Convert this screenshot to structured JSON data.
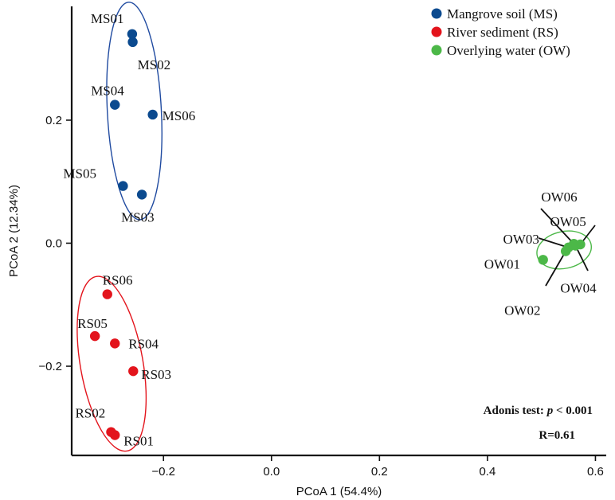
{
  "chart_data": {
    "type": "scatter",
    "xlabel": "PCoA 1 (54.4%)",
    "ylabel": "PCoA 2 (12.34%)",
    "xlim": [
      -0.37,
      0.62
    ],
    "ylim": [
      -0.345,
      0.385
    ],
    "x_ticks": [
      {
        "value": -0.2,
        "label": "−0.2"
      },
      {
        "value": 0.0,
        "label": "0.0"
      },
      {
        "value": 0.2,
        "label": "0.2"
      },
      {
        "value": 0.4,
        "label": "0.4"
      },
      {
        "value": 0.6,
        "label": "0.6"
      }
    ],
    "y_ticks": [
      {
        "value": -0.2,
        "label": "−0.2"
      },
      {
        "value": 0.0,
        "label": "0.0"
      },
      {
        "value": 0.2,
        "label": "0.2"
      }
    ],
    "grid": false,
    "legend_position": "top-right",
    "series": [
      {
        "name": "Mangrove soil (MS)",
        "color": "#0b4a8f",
        "points": [
          {
            "label": "MS01",
            "x": -0.258,
            "y": 0.34
          },
          {
            "label": "MS02",
            "x": -0.257,
            "y": 0.327
          },
          {
            "label": "MS03",
            "x": -0.24,
            "y": 0.079
          },
          {
            "label": "MS04",
            "x": -0.29,
            "y": 0.225
          },
          {
            "label": "MS05",
            "x": -0.275,
            "y": 0.093
          },
          {
            "label": "MS06",
            "x": -0.22,
            "y": 0.209
          }
        ]
      },
      {
        "name": "River sediment (RS)",
        "color": "#e3141c",
        "points": [
          {
            "label": "RS01",
            "x": -0.29,
            "y": -0.312
          },
          {
            "label": "RS02",
            "x": -0.297,
            "y": -0.307
          },
          {
            "label": "RS03",
            "x": -0.256,
            "y": -0.208
          },
          {
            "label": "RS04",
            "x": -0.29,
            "y": -0.163
          },
          {
            "label": "RS05",
            "x": -0.327,
            "y": -0.151
          },
          {
            "label": "RS06",
            "x": -0.304,
            "y": -0.083
          }
        ]
      },
      {
        "name": "Overlying water (OW)",
        "color": "#4cb848",
        "points": [
          {
            "label": "OW01",
            "x": 0.503,
            "y": -0.027
          },
          {
            "label": "OW02",
            "x": 0.545,
            "y": -0.013
          },
          {
            "label": "OW03",
            "x": 0.55,
            "y": -0.007
          },
          {
            "label": "OW04",
            "x": 0.563,
            "y": -0.004
          },
          {
            "label": "OW05",
            "x": 0.572,
            "y": -0.002
          },
          {
            "label": "OW06",
            "x": 0.56,
            "y": -0.001
          }
        ]
      }
    ],
    "ellipses": [
      {
        "series": "Mangrove soil (MS)",
        "color": "#1f4aa0",
        "cx": -0.254,
        "cy": 0.215,
        "rx": 0.05,
        "ry": 0.177,
        "angle": -3
      },
      {
        "series": "River sediment (RS)",
        "color": "#e3141c",
        "cx": -0.296,
        "cy": -0.196,
        "rx": 0.058,
        "ry": 0.144,
        "angle": -10
      },
      {
        "series": "Overlying water (OW)",
        "color": "#4cb848",
        "cx": 0.542,
        "cy": -0.011,
        "rx": 0.051,
        "ry": 0.03,
        "angle": -12
      }
    ],
    "annotations": [
      {
        "text_prefix": "Adonis test: ",
        "italic": "p",
        "text_suffix": " < 0.001"
      },
      {
        "text": "R=0.61"
      }
    ]
  }
}
